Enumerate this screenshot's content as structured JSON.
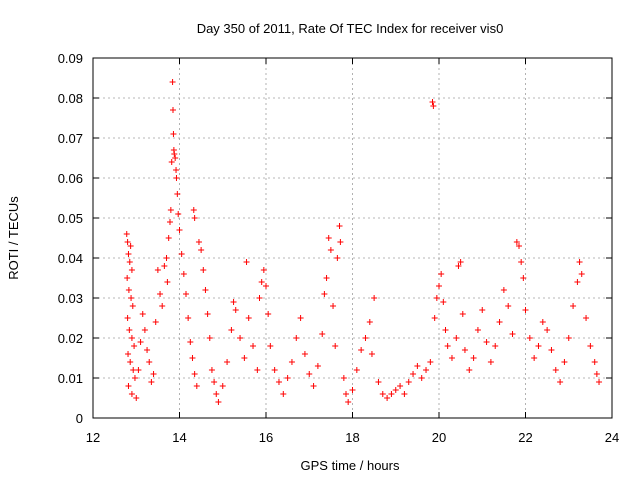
{
  "chart_data": {
    "type": "scatter",
    "title": "Day 350 of 2011, Rate Of TEC Index for receiver vis0",
    "xlabel": "GPS time / hours",
    "ylabel": "ROTI / TECUs",
    "xlim": [
      12,
      24
    ],
    "ylim": [
      0,
      0.09
    ],
    "xticks": [
      12,
      14,
      16,
      18,
      20,
      22,
      24
    ],
    "yticks": [
      0,
      0.01,
      0.02,
      0.03,
      0.04,
      0.05,
      0.06,
      0.07,
      0.08,
      0.09
    ],
    "ytick_labels": [
      "0",
      "0.01",
      "0.02",
      "0.03",
      "0.04",
      "0.05",
      "0.06",
      "0.07",
      "0.08",
      "0.09"
    ],
    "grid": true,
    "marker": "plus",
    "marker_color": "#ff0000",
    "series": [
      {
        "name": "",
        "points": [
          [
            12.78,
            0.046
          ],
          [
            12.8,
            0.044
          ],
          [
            12.82,
            0.041
          ],
          [
            12.85,
            0.039
          ],
          [
            12.87,
            0.043
          ],
          [
            12.9,
            0.037
          ],
          [
            12.79,
            0.035
          ],
          [
            12.83,
            0.032
          ],
          [
            12.88,
            0.03
          ],
          [
            12.92,
            0.028
          ],
          [
            12.8,
            0.025
          ],
          [
            12.84,
            0.022
          ],
          [
            12.9,
            0.02
          ],
          [
            12.95,
            0.018
          ],
          [
            12.81,
            0.016
          ],
          [
            12.86,
            0.014
          ],
          [
            12.93,
            0.012
          ],
          [
            12.97,
            0.01
          ],
          [
            12.82,
            0.008
          ],
          [
            12.9,
            0.006
          ],
          [
            13.0,
            0.005
          ],
          [
            13.05,
            0.012
          ],
          [
            13.1,
            0.019
          ],
          [
            13.15,
            0.026
          ],
          [
            13.2,
            0.022
          ],
          [
            13.25,
            0.017
          ],
          [
            13.3,
            0.014
          ],
          [
            13.35,
            0.009
          ],
          [
            13.4,
            0.011
          ],
          [
            13.45,
            0.024
          ],
          [
            13.5,
            0.037
          ],
          [
            13.55,
            0.031
          ],
          [
            13.6,
            0.028
          ],
          [
            13.65,
            0.038
          ],
          [
            13.7,
            0.04
          ],
          [
            13.72,
            0.034
          ],
          [
            13.75,
            0.045
          ],
          [
            13.78,
            0.049
          ],
          [
            13.8,
            0.052
          ],
          [
            13.82,
            0.064
          ],
          [
            13.84,
            0.084
          ],
          [
            13.85,
            0.077
          ],
          [
            13.86,
            0.071
          ],
          [
            13.87,
            0.067
          ],
          [
            13.88,
            0.066
          ],
          [
            13.9,
            0.065
          ],
          [
            13.92,
            0.062
          ],
          [
            13.93,
            0.06
          ],
          [
            13.95,
            0.056
          ],
          [
            13.97,
            0.051
          ],
          [
            14.0,
            0.047
          ],
          [
            14.05,
            0.041
          ],
          [
            14.1,
            0.036
          ],
          [
            14.15,
            0.031
          ],
          [
            14.2,
            0.025
          ],
          [
            14.25,
            0.019
          ],
          [
            14.3,
            0.015
          ],
          [
            14.35,
            0.011
          ],
          [
            14.4,
            0.008
          ],
          [
            14.33,
            0.052
          ],
          [
            14.35,
            0.05
          ],
          [
            14.45,
            0.044
          ],
          [
            14.5,
            0.042
          ],
          [
            14.55,
            0.037
          ],
          [
            14.6,
            0.032
          ],
          [
            14.65,
            0.026
          ],
          [
            14.7,
            0.02
          ],
          [
            14.75,
            0.012
          ],
          [
            14.8,
            0.009
          ],
          [
            14.85,
            0.006
          ],
          [
            14.9,
            0.004
          ],
          [
            15.0,
            0.008
          ],
          [
            15.1,
            0.014
          ],
          [
            15.2,
            0.022
          ],
          [
            15.25,
            0.029
          ],
          [
            15.3,
            0.027
          ],
          [
            15.4,
            0.02
          ],
          [
            15.5,
            0.015
          ],
          [
            15.55,
            0.039
          ],
          [
            15.6,
            0.025
          ],
          [
            15.7,
            0.018
          ],
          [
            15.8,
            0.012
          ],
          [
            15.85,
            0.03
          ],
          [
            15.9,
            0.034
          ],
          [
            15.95,
            0.037
          ],
          [
            16.0,
            0.033
          ],
          [
            16.05,
            0.026
          ],
          [
            16.1,
            0.018
          ],
          [
            16.2,
            0.012
          ],
          [
            16.3,
            0.009
          ],
          [
            16.4,
            0.006
          ],
          [
            16.5,
            0.01
          ],
          [
            16.6,
            0.014
          ],
          [
            16.7,
            0.02
          ],
          [
            16.8,
            0.025
          ],
          [
            16.9,
            0.016
          ],
          [
            17.0,
            0.011
          ],
          [
            17.1,
            0.008
          ],
          [
            17.2,
            0.013
          ],
          [
            17.3,
            0.021
          ],
          [
            17.35,
            0.031
          ],
          [
            17.4,
            0.035
          ],
          [
            17.45,
            0.045
          ],
          [
            17.5,
            0.042
          ],
          [
            17.55,
            0.028
          ],
          [
            17.6,
            0.018
          ],
          [
            17.65,
            0.04
          ],
          [
            17.7,
            0.048
          ],
          [
            17.72,
            0.044
          ],
          [
            17.8,
            0.01
          ],
          [
            17.85,
            0.006
          ],
          [
            17.9,
            0.004
          ],
          [
            18.0,
            0.007
          ],
          [
            18.1,
            0.012
          ],
          [
            18.2,
            0.017
          ],
          [
            18.3,
            0.02
          ],
          [
            18.4,
            0.024
          ],
          [
            18.5,
            0.03
          ],
          [
            18.45,
            0.016
          ],
          [
            18.6,
            0.009
          ],
          [
            18.7,
            0.006
          ],
          [
            18.8,
            0.005
          ],
          [
            18.9,
            0.006
          ],
          [
            19.0,
            0.007
          ],
          [
            19.1,
            0.008
          ],
          [
            19.2,
            0.006
          ],
          [
            19.3,
            0.009
          ],
          [
            19.4,
            0.011
          ],
          [
            19.5,
            0.013
          ],
          [
            19.6,
            0.01
          ],
          [
            19.7,
            0.012
          ],
          [
            19.8,
            0.014
          ],
          [
            19.85,
            0.079
          ],
          [
            19.87,
            0.078
          ],
          [
            19.9,
            0.025
          ],
          [
            19.95,
            0.03
          ],
          [
            20.0,
            0.033
          ],
          [
            20.05,
            0.036
          ],
          [
            20.1,
            0.029
          ],
          [
            20.15,
            0.022
          ],
          [
            20.2,
            0.018
          ],
          [
            20.3,
            0.015
          ],
          [
            20.4,
            0.02
          ],
          [
            20.45,
            0.038
          ],
          [
            20.5,
            0.039
          ],
          [
            20.55,
            0.026
          ],
          [
            20.6,
            0.017
          ],
          [
            20.7,
            0.012
          ],
          [
            20.8,
            0.015
          ],
          [
            20.9,
            0.022
          ],
          [
            21.0,
            0.027
          ],
          [
            21.1,
            0.019
          ],
          [
            21.2,
            0.014
          ],
          [
            21.3,
            0.018
          ],
          [
            21.4,
            0.024
          ],
          [
            21.5,
            0.032
          ],
          [
            21.6,
            0.028
          ],
          [
            21.7,
            0.021
          ],
          [
            21.8,
            0.044
          ],
          [
            21.85,
            0.043
          ],
          [
            21.9,
            0.039
          ],
          [
            21.95,
            0.035
          ],
          [
            22.0,
            0.027
          ],
          [
            22.1,
            0.02
          ],
          [
            22.2,
            0.015
          ],
          [
            22.3,
            0.018
          ],
          [
            22.4,
            0.024
          ],
          [
            22.5,
            0.022
          ],
          [
            22.6,
            0.017
          ],
          [
            22.7,
            0.012
          ],
          [
            22.8,
            0.009
          ],
          [
            22.9,
            0.014
          ],
          [
            23.0,
            0.02
          ],
          [
            23.1,
            0.028
          ],
          [
            23.2,
            0.034
          ],
          [
            23.25,
            0.039
          ],
          [
            23.3,
            0.036
          ],
          [
            23.4,
            0.025
          ],
          [
            23.5,
            0.018
          ],
          [
            23.6,
            0.014
          ],
          [
            23.65,
            0.011
          ],
          [
            23.7,
            0.009
          ]
        ]
      }
    ]
  }
}
